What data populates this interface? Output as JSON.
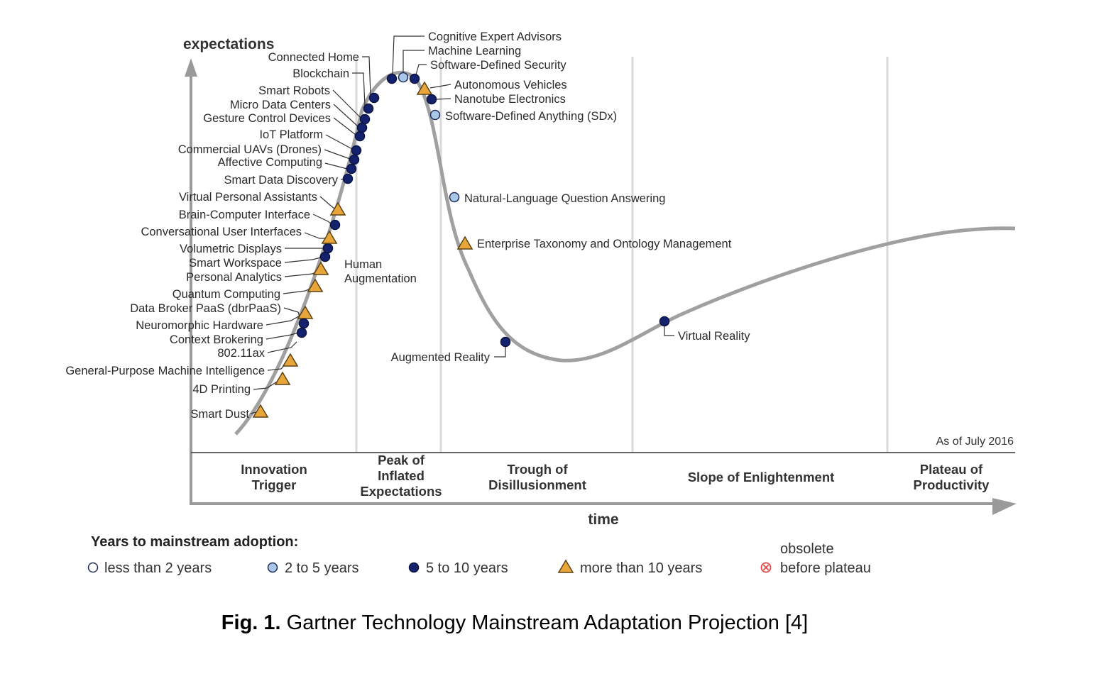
{
  "axes": {
    "y_label": "expectations",
    "x_label": "time"
  },
  "as_of": "As of July 2016",
  "phases": [
    {
      "lines": [
        "Innovation",
        "Trigger"
      ]
    },
    {
      "lines": [
        "Peak of",
        "Inflated",
        "Expectations"
      ]
    },
    {
      "lines": [
        "Trough of",
        "Disillusionment"
      ]
    },
    {
      "lines": [
        "Slope of Enlightenment"
      ]
    },
    {
      "lines": [
        "Plateau of",
        "Productivity"
      ]
    }
  ],
  "markers": {
    "lt2": {
      "fill": "#ffffff",
      "stroke": "#1f2d5c"
    },
    "2to5": {
      "fill": "#a9c8e8",
      "stroke": "#1f2d5c"
    },
    "5to10": {
      "fill": "#14226e",
      "stroke": "#0b1440"
    },
    "gt10": {
      "fill": "#e8a53a",
      "stroke": "#5a4216"
    },
    "obsolete": {
      "fill": "#ffffff",
      "stroke": "#e04848"
    }
  },
  "technologies": [
    {
      "name": "Smart Dust",
      "category": "gt10"
    },
    {
      "name": "4D Printing",
      "category": "gt10"
    },
    {
      "name": "General-Purpose Machine Intelligence",
      "category": "gt10"
    },
    {
      "name": "802.11ax",
      "category": "5to10"
    },
    {
      "name": "Context Brokering",
      "category": "5to10"
    },
    {
      "name": "Neuromorphic Hardware",
      "category": "gt10"
    },
    {
      "name": "Data Broker PaaS (dbrPaaS)",
      "category": "5to10"
    },
    {
      "name": "Quantum Computing",
      "category": "gt10"
    },
    {
      "name": "Personal Analytics",
      "category": "gt10"
    },
    {
      "name": "Smart Workspace",
      "category": "5to10"
    },
    {
      "name": "Volumetric Displays",
      "category": "5to10"
    },
    {
      "name": "Conversational User Interfaces",
      "category": "gt10"
    },
    {
      "name": "Brain-Computer Interface",
      "category": "5to10"
    },
    {
      "name": "Virtual Personal Assistants",
      "category": "gt10"
    },
    {
      "name": "Smart Data Discovery",
      "category": "5to10"
    },
    {
      "name": "Affective Computing",
      "category": "5to10"
    },
    {
      "name": "Commercial UAVs (Drones)",
      "category": "5to10"
    },
    {
      "name": "IoT Platform",
      "category": "5to10"
    },
    {
      "name": "Gesture Control Devices",
      "category": "5to10"
    },
    {
      "name": "Micro Data Centers",
      "category": "5to10"
    },
    {
      "name": "Smart Robots",
      "category": "5to10"
    },
    {
      "name": "Blockchain",
      "category": "5to10"
    },
    {
      "name": "Connected Home",
      "category": "5to10"
    },
    {
      "name": "Human Augmentation",
      "lines": [
        "Human",
        "Augmentation"
      ],
      "category": "gt10"
    },
    {
      "name": "Cognitive Expert Advisors",
      "category": "5to10"
    },
    {
      "name": "Machine Learning",
      "category": "2to5"
    },
    {
      "name": "Software-Defined Security",
      "category": "5to10"
    },
    {
      "name": "Autonomous Vehicles",
      "category": "gt10"
    },
    {
      "name": "Nanotube Electronics",
      "category": "5to10"
    },
    {
      "name": "Software-Defined Anything (SDx)",
      "category": "2to5"
    },
    {
      "name": "Natural-Language Question Answering",
      "category": "2to5"
    },
    {
      "name": "Enterprise Taxonomy and Ontology Management",
      "category": "gt10"
    },
    {
      "name": "Augmented Reality",
      "category": "5to10"
    },
    {
      "name": "Virtual Reality",
      "category": "5to10"
    }
  ],
  "legend": {
    "title": "Years to mainstream adoption:",
    "items": [
      {
        "category": "lt2",
        "label": "less than 2 years"
      },
      {
        "category": "2to5",
        "label": "2 to 5 years"
      },
      {
        "category": "5to10",
        "label": "5 to 10 years"
      },
      {
        "category": "gt10",
        "label": "more than 10 years"
      },
      {
        "category": "obsolete",
        "label_top": "obsolete",
        "label": "before plateau"
      }
    ]
  },
  "caption": {
    "bold": "Fig. 1.",
    "text": " Gartner Technology Mainstream Adaptation Projection [4]"
  }
}
